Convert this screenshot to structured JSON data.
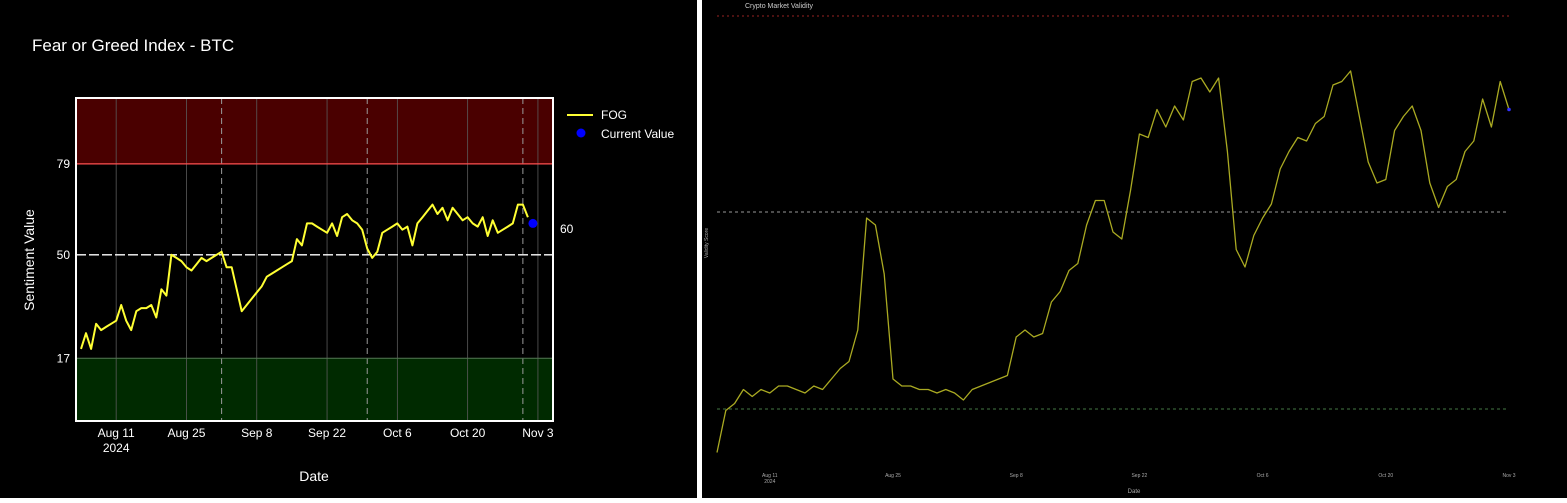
{
  "chart_data": [
    {
      "type": "line",
      "title": "Fear or Greed Index - BTC",
      "xlabel": "Date",
      "ylabel": "Sentiment Value",
      "ylim": [
        -3,
        100
      ],
      "x_ticks": [
        "Aug 11",
        "Aug 25",
        "Sep 8",
        "Sep 22",
        "Oct 6",
        "Oct 20",
        "Nov 3"
      ],
      "x_tick_sublabel": "2024",
      "y_ticks": [
        17,
        50,
        79
      ],
      "zones": {
        "fear_below": 17,
        "neutral": 50,
        "greed_above": 79
      },
      "legend": [
        "FOG",
        "Current Value"
      ],
      "legend_position": "top-right",
      "current_value": 60,
      "current_value_label": "60",
      "colors": {
        "line": "#ffff33",
        "current": "#0000ff",
        "greed_zone": "#4a0000",
        "fear_zone": "#002a00",
        "greed_line": "#ff5050",
        "neutral_line": "#ffffff"
      },
      "series": [
        {
          "name": "FOG",
          "x": [
            "2024-08-04",
            "2024-08-05",
            "2024-08-06",
            "2024-08-07",
            "2024-08-08",
            "2024-08-09",
            "2024-08-10",
            "2024-08-11",
            "2024-08-12",
            "2024-08-13",
            "2024-08-14",
            "2024-08-15",
            "2024-08-16",
            "2024-08-17",
            "2024-08-18",
            "2024-08-19",
            "2024-08-20",
            "2024-08-21",
            "2024-08-22",
            "2024-08-23",
            "2024-08-24",
            "2024-08-25",
            "2024-08-26",
            "2024-08-27",
            "2024-08-28",
            "2024-08-29",
            "2024-08-30",
            "2024-08-31",
            "2024-09-01",
            "2024-09-02",
            "2024-09-03",
            "2024-09-04",
            "2024-09-05",
            "2024-09-06",
            "2024-09-07",
            "2024-09-08",
            "2024-09-09",
            "2024-09-10",
            "2024-09-11",
            "2024-09-12",
            "2024-09-13",
            "2024-09-14",
            "2024-09-15",
            "2024-09-16",
            "2024-09-17",
            "2024-09-18",
            "2024-09-19",
            "2024-09-20",
            "2024-09-21",
            "2024-09-22",
            "2024-09-23",
            "2024-09-24",
            "2024-09-25",
            "2024-09-26",
            "2024-09-27",
            "2024-09-28",
            "2024-09-29",
            "2024-09-30",
            "2024-10-01",
            "2024-10-02",
            "2024-10-03",
            "2024-10-04",
            "2024-10-05",
            "2024-10-06",
            "2024-10-07",
            "2024-10-08",
            "2024-10-09",
            "2024-10-10",
            "2024-10-11",
            "2024-10-12",
            "2024-10-13",
            "2024-10-14",
            "2024-10-15",
            "2024-10-16",
            "2024-10-17",
            "2024-10-18",
            "2024-10-19",
            "2024-10-20",
            "2024-10-21",
            "2024-10-22",
            "2024-10-23",
            "2024-10-24",
            "2024-10-25",
            "2024-10-26",
            "2024-10-27",
            "2024-10-28",
            "2024-10-29",
            "2024-10-30",
            "2024-10-31",
            "2024-11-01"
          ],
          "values": [
            20,
            25,
            20,
            28,
            26,
            27,
            28,
            29,
            34,
            29,
            26,
            32,
            33,
            33,
            34,
            30,
            39,
            37,
            50,
            49,
            48,
            46,
            45,
            47,
            49,
            48,
            49,
            50,
            51,
            46,
            46,
            39,
            32,
            34,
            36,
            38,
            40,
            43,
            44,
            45,
            46,
            47,
            48,
            55,
            53,
            60,
            60,
            59,
            58,
            57,
            60,
            56,
            62,
            63,
            61,
            60,
            58,
            52,
            49,
            51,
            57,
            58,
            59,
            60,
            58,
            59,
            53,
            60,
            62,
            64,
            66,
            63,
            65,
            61,
            65,
            63,
            61,
            62,
            60,
            59,
            62,
            56,
            61,
            57,
            58,
            59,
            60,
            66,
            66,
            62
          ]
        }
      ]
    },
    {
      "type": "line",
      "title": "Crypto Market Validity",
      "xlabel": "Date",
      "ylabel": "Validity Score",
      "x_ticks": [
        "Aug 11",
        "Aug 25",
        "Sep 8",
        "Sep 22",
        "Oct 6",
        "Oct 20",
        "Nov 3"
      ],
      "x_tick_sublabel": "2024",
      "colors": {
        "line": "#aaaa22",
        "top_line": "#992222",
        "mid_line": "#999999",
        "low_line": "#447744",
        "last_point": "#3333ff"
      },
      "series": [
        {
          "name": "Validity",
          "x": [
            "2024-08-05",
            "2024-08-06",
            "2024-08-07",
            "2024-08-08",
            "2024-08-09",
            "2024-08-10",
            "2024-08-11",
            "2024-08-12",
            "2024-08-13",
            "2024-08-14",
            "2024-08-15",
            "2024-08-16",
            "2024-08-17",
            "2024-08-18",
            "2024-08-19",
            "2024-08-20",
            "2024-08-21",
            "2024-08-22",
            "2024-08-23",
            "2024-08-24",
            "2024-08-25",
            "2024-08-26",
            "2024-08-27",
            "2024-08-28",
            "2024-08-29",
            "2024-08-30",
            "2024-08-31",
            "2024-09-01",
            "2024-09-02",
            "2024-09-03",
            "2024-09-04",
            "2024-09-05",
            "2024-09-06",
            "2024-09-07",
            "2024-09-08",
            "2024-09-09",
            "2024-09-10",
            "2024-09-11",
            "2024-09-12",
            "2024-09-13",
            "2024-09-14",
            "2024-09-15",
            "2024-09-16",
            "2024-09-17",
            "2024-09-18",
            "2024-09-19",
            "2024-09-20",
            "2024-09-21",
            "2024-09-22",
            "2024-09-23",
            "2024-09-24",
            "2024-09-25",
            "2024-09-26",
            "2024-09-27",
            "2024-09-28",
            "2024-09-29",
            "2024-09-30",
            "2024-10-01",
            "2024-10-02",
            "2024-10-03",
            "2024-10-04",
            "2024-10-05",
            "2024-10-06",
            "2024-10-07",
            "2024-10-08",
            "2024-10-09",
            "2024-10-10",
            "2024-10-11",
            "2024-10-12",
            "2024-10-13",
            "2024-10-14",
            "2024-10-15",
            "2024-10-16",
            "2024-10-17",
            "2024-10-18",
            "2024-10-19",
            "2024-10-20",
            "2024-10-21",
            "2024-10-22",
            "2024-10-23",
            "2024-10-24",
            "2024-10-25",
            "2024-10-26",
            "2024-10-27",
            "2024-10-28",
            "2024-10-29",
            "2024-10-30",
            "2024-10-31",
            "2024-11-01",
            "2024-11-02",
            "2024-11-03"
          ],
          "values": [
            5,
            17,
            19,
            23,
            21,
            23,
            22,
            24,
            24,
            23,
            22,
            24,
            23,
            26,
            29,
            31,
            40,
            72,
            70,
            56,
            26,
            24,
            24,
            23,
            23,
            22,
            23,
            22,
            20,
            23,
            24,
            25,
            26,
            27,
            38,
            40,
            38,
            39,
            48,
            51,
            57,
            59,
            70,
            77,
            77,
            68,
            66,
            80,
            96,
            95,
            103,
            98,
            104,
            100,
            111,
            112,
            108,
            112,
            91,
            63,
            58,
            67,
            72,
            76,
            86,
            91,
            95,
            94,
            99,
            101,
            110,
            111,
            114,
            101,
            88,
            82,
            83,
            97,
            101,
            104,
            97,
            82,
            75,
            81,
            83,
            91,
            94,
            106,
            98,
            111,
            103
          ]
        }
      ]
    }
  ]
}
